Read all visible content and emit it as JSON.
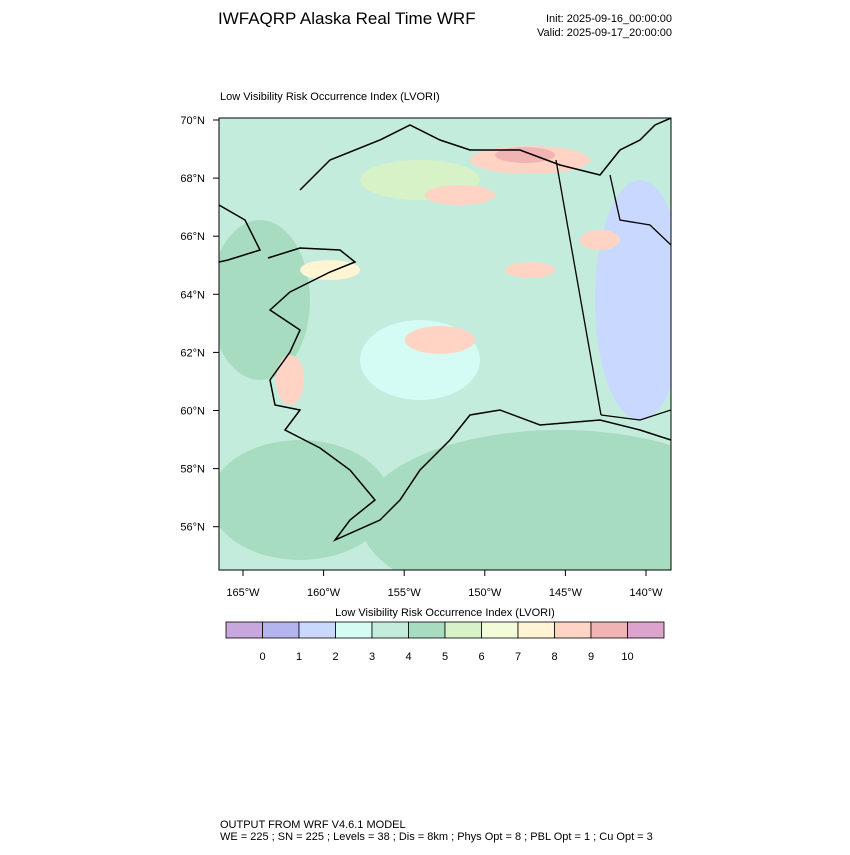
{
  "header": {
    "title": "IWFAQRP Alaska Real Time WRF",
    "init": "Init: 2025-09-16_00:00:00",
    "valid": "Valid: 2025-09-17_20:00:00"
  },
  "map": {
    "title": "Low Visibility Risk Occurrence Index   (LVORI)",
    "lat_labels": [
      "70°N",
      "68°N",
      "66°N",
      "64°N",
      "62°N",
      "60°N",
      "58°N",
      "56°N"
    ],
    "lon_labels": [
      "165°W",
      "160°W",
      "155°W",
      "150°W",
      "145°W",
      "140°W"
    ]
  },
  "colorbar": {
    "title": "Low Visibility Risk Occurrence Index  (LVORI)",
    "colors": [
      "#c8a8dc",
      "#b4b4ee",
      "#c8d8ff",
      "#d4fcf4",
      "#c4ecdc",
      "#a8dcc0",
      "#d8f2c8",
      "#f2fcd8",
      "#fff4d4",
      "#ffd4c4",
      "#f0b4b4",
      "#dca4cc"
    ],
    "labels": [
      "0",
      "1",
      "2",
      "3",
      "4",
      "5",
      "6",
      "7",
      "8",
      "9",
      "10"
    ]
  },
  "footer": {
    "line1": "OUTPUT FROM WRF V4.6.1 MODEL",
    "line2": "WE = 225 ; SN = 225 ; Levels = 38 ; Dis = 8km ; Phys Opt = 8 ; PBL Opt = 1 ; Cu Opt = 3"
  }
}
